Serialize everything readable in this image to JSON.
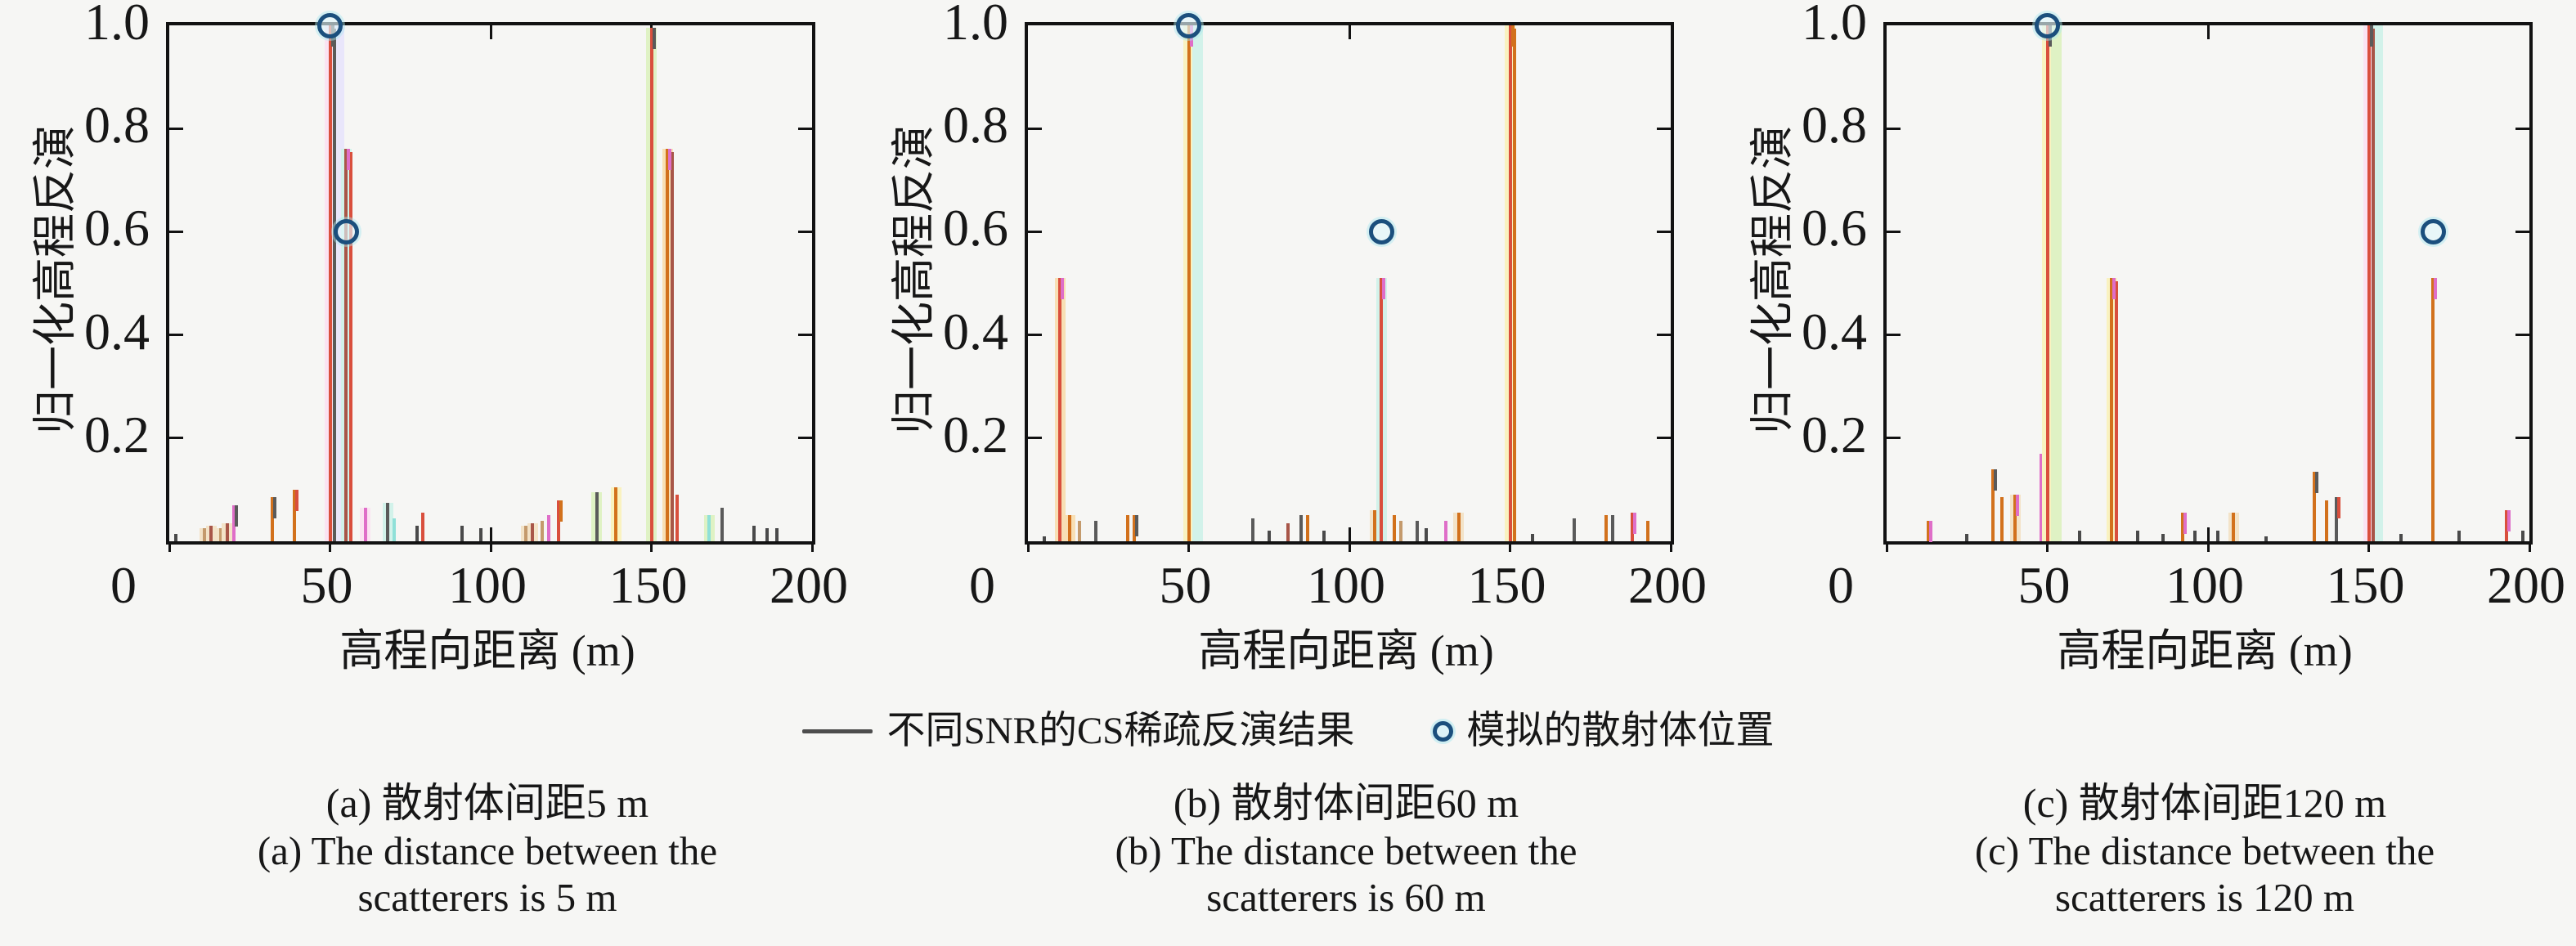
{
  "figure": {
    "background": "#f6f6f4",
    "axis_color": "#121212"
  },
  "legend": {
    "line_label": "不同SNR的CS稀疏反演结果",
    "line_color": "#4d4d4d",
    "marker_label": "模拟的散射体位置",
    "marker_color": "#1b4f7d"
  },
  "palette": {
    "red": "#d94f3d",
    "orange": "#d2711c",
    "brown": "#a85648",
    "tan": "#c49a6c",
    "gray": "#5a5a5a",
    "dark": "#4a4a4a",
    "magenta": "#df6ec8",
    "cyan": "#8fe0d8",
    "pinklight": "#fbe3f2",
    "lavlight": "#e9e6fb",
    "yellowlight": "#f9f2c0",
    "greenlight": "#dff2c4",
    "cyanlight": "#d2f2ea",
    "orangelight": "#f8dfb4",
    "tanlight": "#f3e3c8"
  },
  "chart_data": [
    {
      "type": "stem",
      "xlabel": "高程向距离 (m)",
      "ylabel": "归一化高程反演",
      "xlim": [
        0,
        200
      ],
      "ylim": [
        0,
        1
      ],
      "xticks": [
        0,
        50,
        100,
        150,
        200
      ],
      "yticks": [
        "0.2",
        "0.4",
        "0.6",
        "0.8",
        "1.0"
      ],
      "caption_zh": "(a) 散射体间距5 m",
      "caption_en1": "(a) The distance between the",
      "caption_en2": "scatterers is 5 m",
      "scatterer_spacing_m": 5,
      "scatterers": [
        {
          "x": 50,
          "y": 1.0
        },
        {
          "x": 55,
          "y": 0.6
        }
      ],
      "spikes": [
        {
          "x": 2,
          "h": 0.015,
          "c": "dark"
        },
        {
          "x": 11,
          "h": 0.025,
          "c": "tan",
          "halo": "tanlight"
        },
        {
          "x": 13,
          "h": 0.03,
          "c": "brown",
          "halo": "tanlight"
        },
        {
          "x": 16,
          "h": 0.025,
          "c": "tan",
          "halo": "tanlight"
        },
        {
          "x": 18,
          "h": 0.035,
          "c": "brown",
          "halo": "tanlight"
        },
        {
          "x": 20,
          "h": 0.07,
          "c": "magenta",
          "tip": "gray"
        },
        {
          "x": 32,
          "h": 0.085,
          "c": "orange",
          "tip": "gray"
        },
        {
          "x": 39,
          "h": 0.1,
          "c": "orange",
          "tip": "red"
        },
        {
          "x": 50,
          "h": 1.0,
          "c": "red",
          "c2": "gray",
          "halo": "pinklight",
          "halo2": "lavlight",
          "tip": "gray"
        },
        {
          "x": 55,
          "h": 0.76,
          "c": "brown",
          "c2": "red",
          "halo": "cyanlight",
          "tip": "magenta"
        },
        {
          "x": 61,
          "h": 0.065,
          "c": "magenta",
          "halo": "pinklight"
        },
        {
          "x": 68,
          "h": 0.075,
          "c": "gray",
          "halo": "cyanlight"
        },
        {
          "x": 70,
          "h": 0.045,
          "c": "cyan"
        },
        {
          "x": 77,
          "h": 0.03,
          "c": "dark"
        },
        {
          "x": 79,
          "h": 0.055,
          "c": "red"
        },
        {
          "x": 91,
          "h": 0.03,
          "c": "dark"
        },
        {
          "x": 97,
          "h": 0.025,
          "c": "dark"
        },
        {
          "x": 111,
          "h": 0.03,
          "c": "tan",
          "halo": "tanlight"
        },
        {
          "x": 113,
          "h": 0.035,
          "c": "brown",
          "halo": "tanlight"
        },
        {
          "x": 116,
          "h": 0.04,
          "c": "tan"
        },
        {
          "x": 118,
          "h": 0.05,
          "c": "magenta"
        },
        {
          "x": 121,
          "h": 0.08,
          "c": "red",
          "tip": "orange"
        },
        {
          "x": 133,
          "h": 0.095,
          "c": "gray",
          "halo": "greenlight"
        },
        {
          "x": 139,
          "h": 0.105,
          "c": "orange",
          "halo": "yellowlight"
        },
        {
          "x": 150,
          "h": 0.995,
          "c": "red",
          "halo": "greenlight",
          "tip": "gray"
        },
        {
          "x": 155,
          "h": 0.76,
          "c": "orange",
          "c2": "brown",
          "halo": "orangelight",
          "tip": "magenta"
        },
        {
          "x": 158,
          "h": 0.09,
          "c": "red"
        },
        {
          "x": 168,
          "h": 0.05,
          "c": "cyan",
          "halo": "greenlight"
        },
        {
          "x": 172,
          "h": 0.065,
          "c": "gray"
        },
        {
          "x": 182,
          "h": 0.03,
          "c": "dark"
        },
        {
          "x": 186,
          "h": 0.025,
          "c": "dark"
        },
        {
          "x": 189,
          "h": 0.025,
          "c": "dark"
        }
      ]
    },
    {
      "type": "stem",
      "xlabel": "高程向距离 (m)",
      "ylabel": "归一化高程反演",
      "xlim": [
        0,
        200
      ],
      "ylim": [
        0,
        1
      ],
      "xticks": [
        0,
        50,
        100,
        150,
        200
      ],
      "yticks": [
        "0.2",
        "0.4",
        "0.6",
        "0.8",
        "1.0"
      ],
      "caption_zh": "(b) 散射体间距60 m",
      "caption_en1": "(b) The distance between the",
      "caption_en2": "scatterers is 60 m",
      "scatterer_spacing_m": 60,
      "scatterers": [
        {
          "x": 50,
          "y": 1.0
        },
        {
          "x": 110,
          "y": 0.6
        }
      ],
      "spikes": [
        {
          "x": 5,
          "h": 0.01,
          "c": "dark"
        },
        {
          "x": 10,
          "h": 0.51,
          "c": "red",
          "halo": "orangelight",
          "tip": "magenta"
        },
        {
          "x": 13,
          "h": 0.05,
          "c": "orange",
          "halo": "orangelight"
        },
        {
          "x": 16,
          "h": 0.04,
          "c": "tan"
        },
        {
          "x": 21,
          "h": 0.04,
          "c": "gray"
        },
        {
          "x": 31,
          "h": 0.05,
          "c": "orange"
        },
        {
          "x": 33,
          "h": 0.05,
          "c": "orange",
          "tip": "gray"
        },
        {
          "x": 50,
          "h": 1.0,
          "c": "orange",
          "halo": "yellowlight",
          "halo2": "cyanlight",
          "tip": "magenta"
        },
        {
          "x": 70,
          "h": 0.045,
          "c": "gray"
        },
        {
          "x": 75,
          "h": 0.02,
          "c": "dark"
        },
        {
          "x": 81,
          "h": 0.035,
          "c": "brown"
        },
        {
          "x": 85,
          "h": 0.05,
          "c": "gray"
        },
        {
          "x": 87,
          "h": 0.05,
          "c": "orange"
        },
        {
          "x": 92,
          "h": 0.02,
          "c": "dark"
        },
        {
          "x": 108,
          "h": 0.06,
          "c": "orange",
          "halo": "tanlight"
        },
        {
          "x": 110,
          "h": 0.51,
          "c": "red",
          "halo": "cyanlight",
          "tip": "magenta"
        },
        {
          "x": 114,
          "h": 0.05,
          "c": "orange"
        },
        {
          "x": 116,
          "h": 0.04,
          "c": "tan"
        },
        {
          "x": 121,
          "h": 0.04,
          "c": "gray"
        },
        {
          "x": 124,
          "h": 0.025,
          "c": "dark"
        },
        {
          "x": 130,
          "h": 0.04,
          "c": "magenta"
        },
        {
          "x": 134,
          "h": 0.055,
          "c": "orange",
          "halo": "tanlight"
        },
        {
          "x": 150,
          "h": 1.0,
          "c": "red",
          "c2": "orange",
          "halo": "yellowlight",
          "tip": "orange"
        },
        {
          "x": 157,
          "h": 0.015,
          "c": "dark"
        },
        {
          "x": 170,
          "h": 0.045,
          "c": "gray"
        },
        {
          "x": 180,
          "h": 0.05,
          "c": "orange"
        },
        {
          "x": 182,
          "h": 0.05,
          "c": "gray"
        },
        {
          "x": 188,
          "h": 0.055,
          "c": "red",
          "tip": "magenta"
        },
        {
          "x": 193,
          "h": 0.04,
          "c": "orange"
        }
      ]
    },
    {
      "type": "stem",
      "xlabel": "高程向距离 (m)",
      "ylabel": "归一化高程反演",
      "xlim": [
        0,
        200
      ],
      "ylim": [
        0,
        1
      ],
      "xticks": [
        0,
        50,
        100,
        150,
        200
      ],
      "yticks": [
        "0.2",
        "0.4",
        "0.6",
        "0.8",
        "1.0"
      ],
      "caption_zh": "(c) 散射体间距120 m",
      "caption_en1": "(c) The distance between the",
      "caption_en2": "scatterers is 120 m",
      "scatterer_spacing_m": 120,
      "scatterers": [
        {
          "x": 50,
          "y": 1.0
        },
        {
          "x": 170,
          "y": 0.6
        }
      ],
      "spikes": [
        {
          "x": 13,
          "h": 0.04,
          "c": "orange",
          "tip": "magenta"
        },
        {
          "x": 25,
          "h": 0.015,
          "c": "dark"
        },
        {
          "x": 33,
          "h": 0.14,
          "c": "orange",
          "tip": "gray"
        },
        {
          "x": 36,
          "h": 0.085,
          "c": "orange"
        },
        {
          "x": 40,
          "h": 0.09,
          "c": "orange",
          "halo": "tanlight",
          "tip": "magenta"
        },
        {
          "x": 48,
          "h": 0.17,
          "c": "magenta"
        },
        {
          "x": 50,
          "h": 1.0,
          "c": "red",
          "halo": "yellowlight",
          "halo2": "greenlight",
          "tip": "gray"
        },
        {
          "x": 60,
          "h": 0.02,
          "c": "dark"
        },
        {
          "x": 70,
          "h": 0.51,
          "c": "orange",
          "c2": "red",
          "halo": "yellowlight",
          "tip": "magenta"
        },
        {
          "x": 78,
          "h": 0.02,
          "c": "dark"
        },
        {
          "x": 86,
          "h": 0.015,
          "c": "dark"
        },
        {
          "x": 92,
          "h": 0.055,
          "c": "orange",
          "tip": "magenta"
        },
        {
          "x": 96,
          "h": 0.02,
          "c": "dark"
        },
        {
          "x": 103,
          "h": 0.02,
          "c": "dark"
        },
        {
          "x": 108,
          "h": 0.055,
          "c": "orange",
          "halo": "tanlight"
        },
        {
          "x": 118,
          "h": 0.01,
          "c": "dark"
        },
        {
          "x": 133,
          "h": 0.135,
          "c": "orange",
          "tip": "gray"
        },
        {
          "x": 137,
          "h": 0.08,
          "c": "orange"
        },
        {
          "x": 140,
          "h": 0.085,
          "c": "gray",
          "tip": "red"
        },
        {
          "x": 150,
          "h": 1.0,
          "c": "red",
          "c2": "brown",
          "halo": "pinklight",
          "halo2": "cyanlight",
          "tip": "gray"
        },
        {
          "x": 160,
          "h": 0.015,
          "c": "dark"
        },
        {
          "x": 170,
          "h": 0.51,
          "c": "orange",
          "tip": "magenta"
        },
        {
          "x": 178,
          "h": 0.02,
          "c": "dark"
        },
        {
          "x": 193,
          "h": 0.06,
          "c": "red",
          "tip": "magenta"
        },
        {
          "x": 198,
          "h": 0.02,
          "c": "dark"
        }
      ]
    }
  ]
}
